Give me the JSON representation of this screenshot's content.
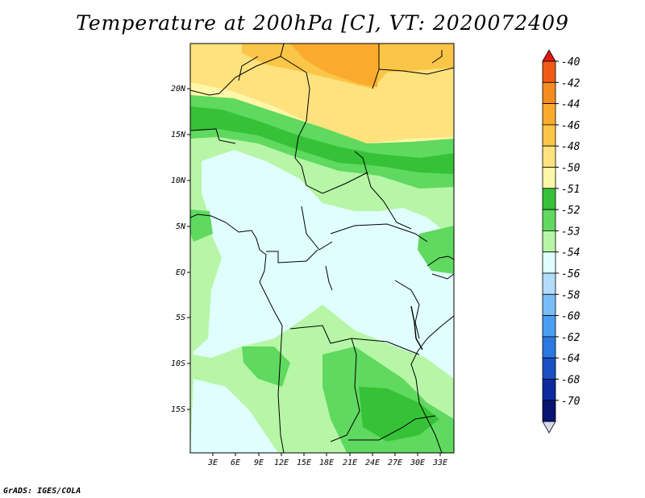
{
  "title": "Temperature at 200hPa [C], VT: 2020072409",
  "credit": "GrADS: IGES/COLA",
  "map": {
    "lat_labels": [
      "20N",
      "15N",
      "10N",
      "5N",
      "EQ",
      "5S",
      "10S",
      "15S"
    ],
    "lon_labels": [
      "3E",
      "6E",
      "9E",
      "12E",
      "15E",
      "18E",
      "21E",
      "24E",
      "27E",
      "30E",
      "33E"
    ]
  },
  "legend": {
    "labels": [
      "-40",
      "-42",
      "-44",
      "-46",
      "-48",
      "-50",
      "-51",
      "-52",
      "-53",
      "-54",
      "-56",
      "-58",
      "-60",
      "-62",
      "-64",
      "-68",
      "-70"
    ],
    "colors": [
      "#e01a10",
      "#f05a14",
      "#f58c1e",
      "#faab2d",
      "#fbc547",
      "#fde27e",
      "#fef6a8",
      "#36c236",
      "#5fd95f",
      "#b6f6a6",
      "#e1fefe",
      "#b2dcfa",
      "#79bdf7",
      "#4a9df0",
      "#2b78e0",
      "#1a50c4",
      "#0c2aa0",
      "#081470",
      "#d8d8f0"
    ]
  }
}
